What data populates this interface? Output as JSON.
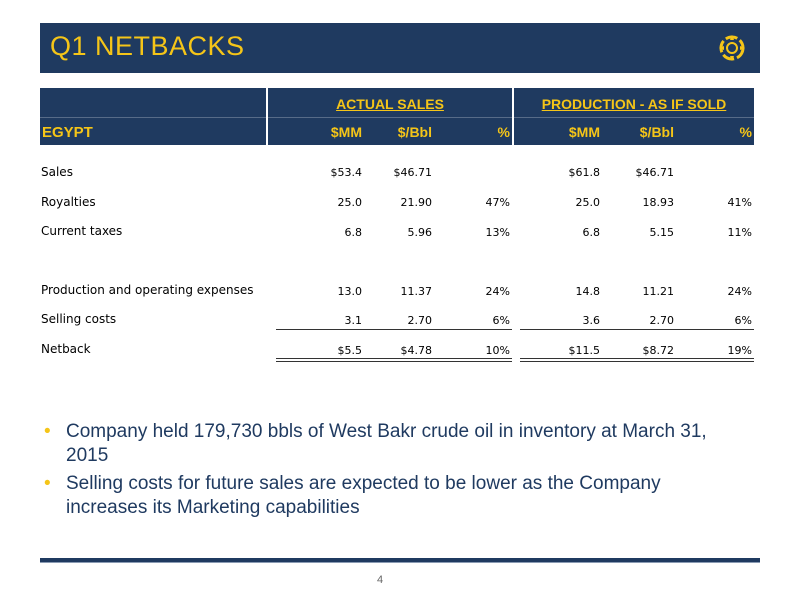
{
  "slide": {
    "title": "Q1 NETBACKS",
    "page_number": "4"
  },
  "table": {
    "region": "EGYPT",
    "groups": [
      "ACTUAL SALES",
      "PRODUCTION - AS IF SOLD"
    ],
    "columns": [
      "$MM",
      "$/Bbl",
      "%",
      "$MM",
      "$/Bbl",
      "%"
    ],
    "rows": [
      {
        "label": "Sales",
        "values": [
          "$53.4",
          "$46.71",
          "",
          "$61.8",
          "$46.71",
          ""
        ]
      },
      {
        "label": "Royalties",
        "values": [
          "25.0",
          "21.90",
          "47%",
          "25.0",
          "18.93",
          "41%"
        ]
      },
      {
        "label": "Current taxes",
        "values": [
          "6.8",
          "5.96",
          "13%",
          "6.8",
          "5.15",
          "11%"
        ]
      },
      {
        "label": "Production and operating expenses",
        "values": [
          "13.0",
          "11.37",
          "24%",
          "14.8",
          "11.21",
          "24%"
        ]
      },
      {
        "label": "Selling costs",
        "values": [
          "3.1",
          "2.70",
          "6%",
          "3.6",
          "2.70",
          "6%"
        ]
      },
      {
        "label": "Netback",
        "values": [
          "$5.5",
          "$4.78",
          "10%",
          "$11.5",
          "$8.72",
          "19%"
        ]
      }
    ]
  },
  "bullets": [
    "Company held 179,730 bbls of West Bakr crude oil in inventory at March 31, 2015",
    "Selling costs for future sales are expected to be lower as the Company increases its Marketing capabilities"
  ],
  "colors": {
    "navy": "#1f3a60",
    "gold": "#f5c518"
  },
  "icons": {
    "logo": "gear-ring-logo-icon"
  }
}
